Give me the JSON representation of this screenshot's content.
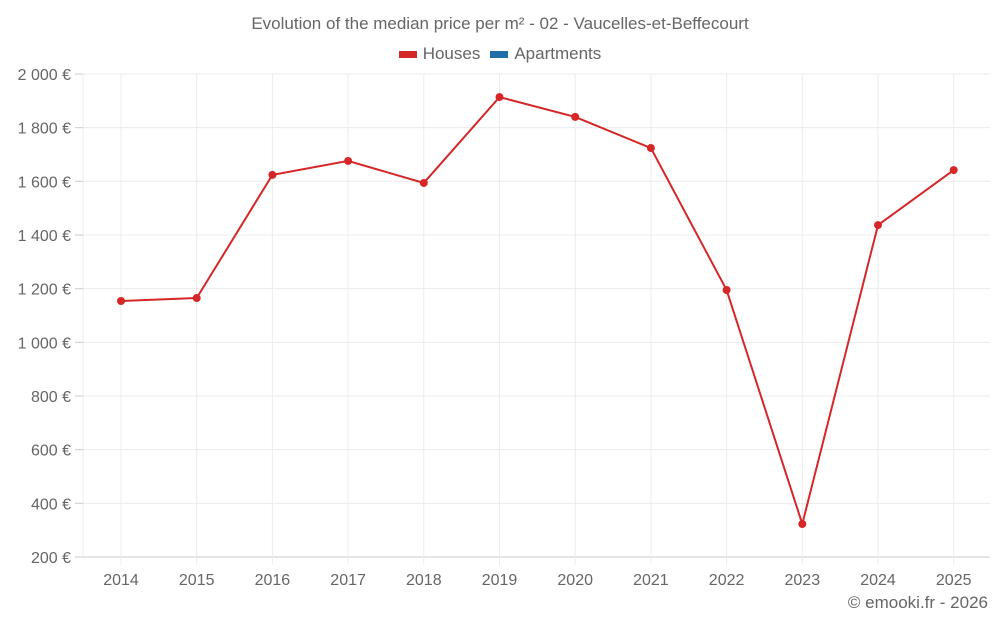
{
  "title": "Evolution of the median price per m² - 02 - Vaucelles-et-Beffecourt",
  "legend": [
    {
      "label": "Houses",
      "color": "#d62728"
    },
    {
      "label": "Apartments",
      "color": "#1f6fa8"
    }
  ],
  "credit": "© emooki.fr - 2026",
  "chart_data": {
    "type": "line",
    "title": "Evolution of the median price per m² - 02 - Vaucelles-et-Beffecourt",
    "xlabel": "",
    "ylabel": "",
    "categories": [
      "2014",
      "2015",
      "2016",
      "2017",
      "2018",
      "2019",
      "2020",
      "2021",
      "2022",
      "2023",
      "2024",
      "2025"
    ],
    "series": [
      {
        "name": "Houses",
        "color": "#d62728",
        "values": [
          1154,
          1165,
          1624,
          1676,
          1594,
          1914,
          1840,
          1724,
          1195,
          323,
          1437,
          1642
        ]
      },
      {
        "name": "Apartments",
        "color": "#1f6fa8",
        "values": []
      }
    ],
    "ylim": [
      200,
      2000
    ],
    "yticks": [
      "200 €",
      "400 €",
      "600 €",
      "800 €",
      "1 000 €",
      "1 200 €",
      "1 400 €",
      "1 600 €",
      "1 800 €",
      "2 000 €"
    ],
    "grid": true,
    "legend_position": "top"
  }
}
